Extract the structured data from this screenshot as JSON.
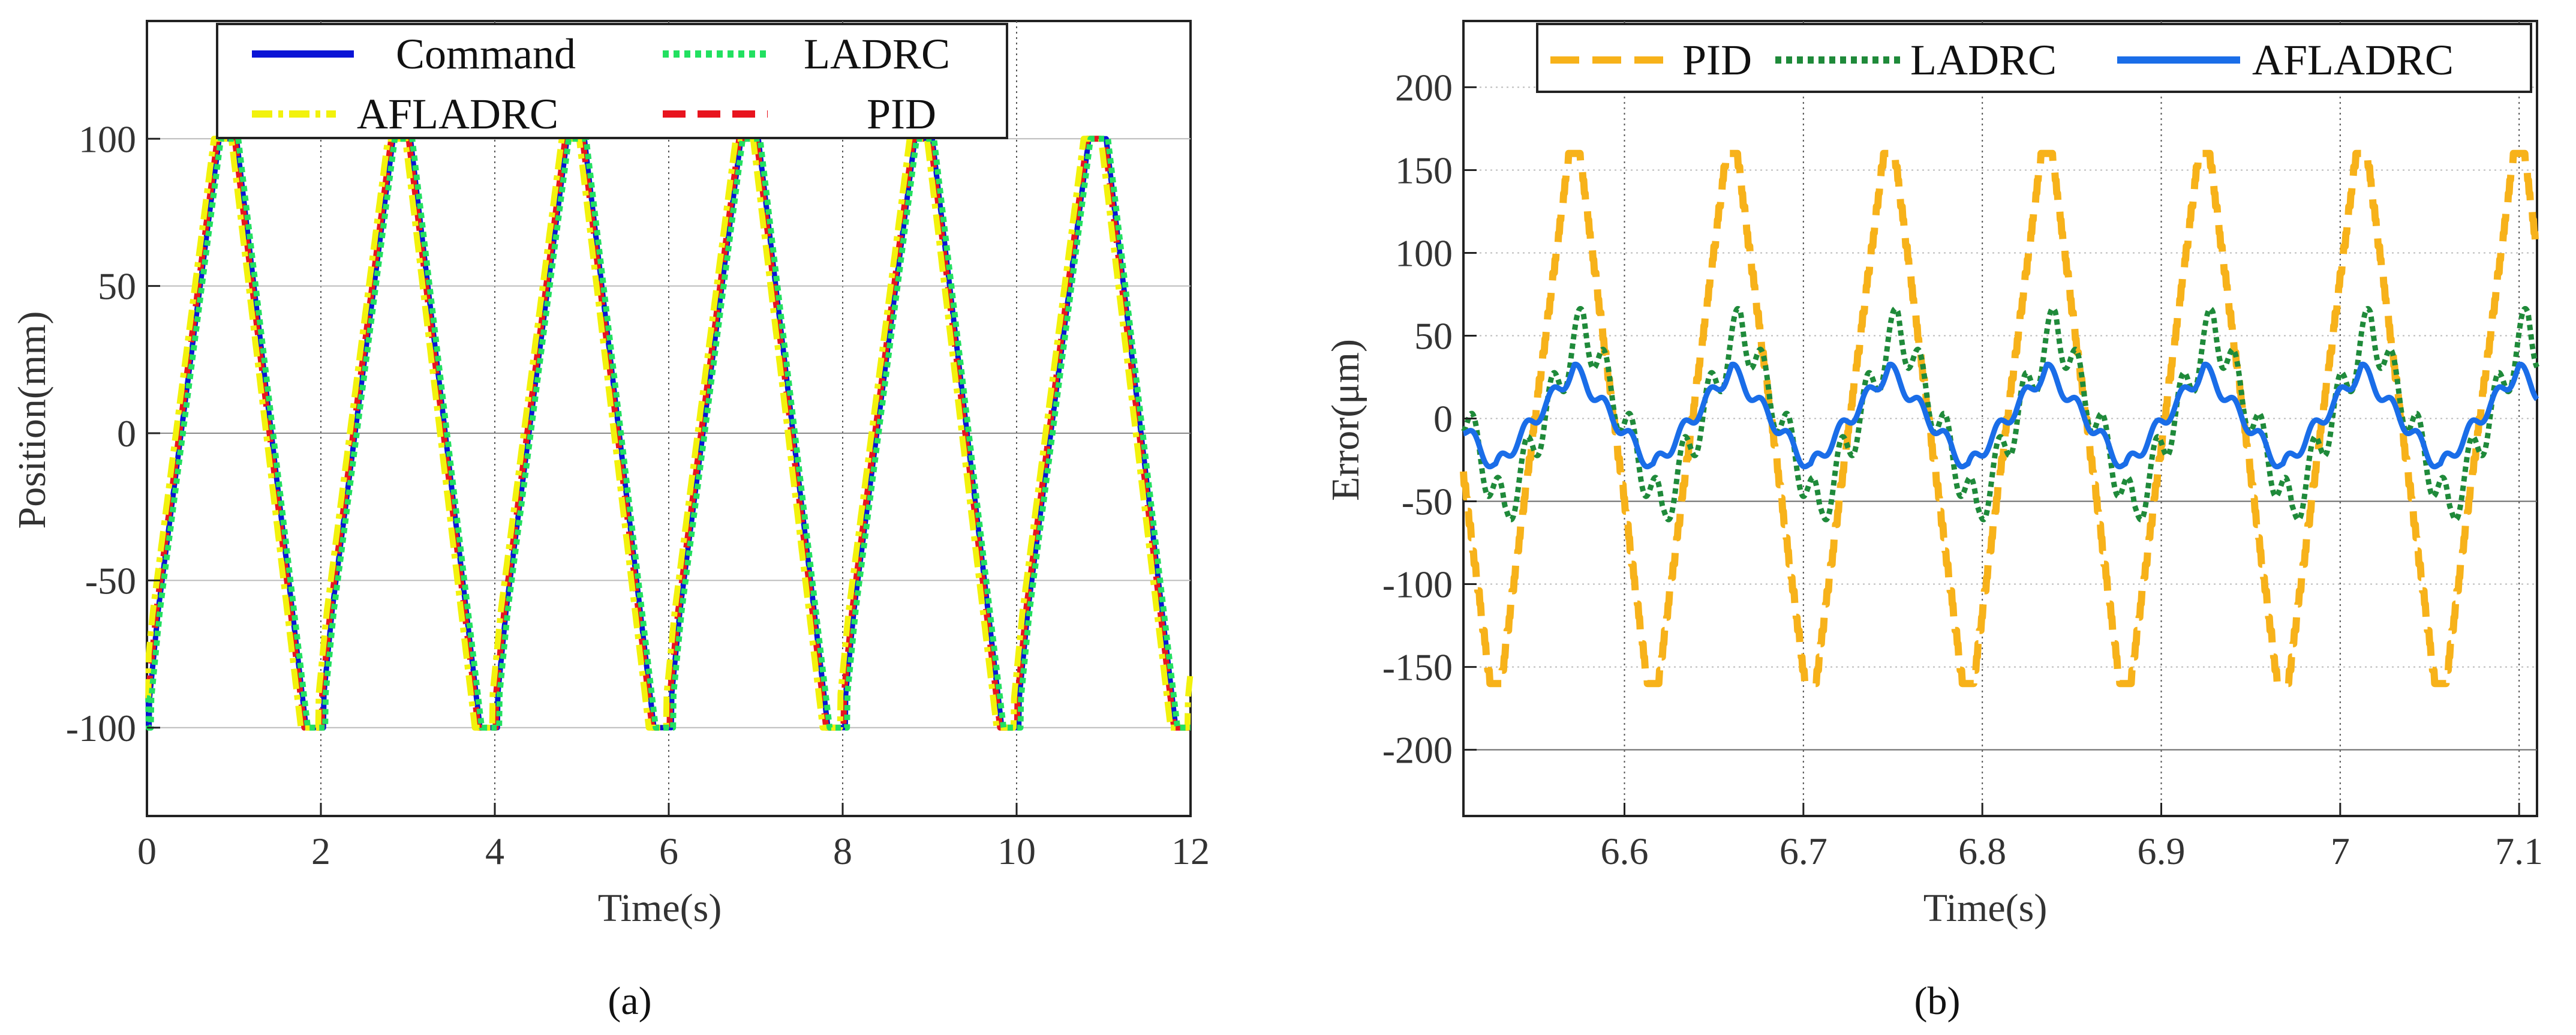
{
  "chart_data": [
    {
      "type": "line",
      "panel": "a",
      "caption": "(a)",
      "xlabel": "Time(s)",
      "ylabel": "Position(mm)",
      "xlim": [
        0,
        12
      ],
      "ylim": [
        -130,
        140
      ],
      "xticks": [
        0,
        2,
        4,
        6,
        8,
        10,
        12
      ],
      "xtick_labels": [
        "0",
        "2",
        "4",
        "6",
        "8",
        "10",
        "12"
      ],
      "yticks": [
        -100,
        -50,
        0,
        50,
        100
      ],
      "ytick_labels": [
        "-100",
        "-50",
        "0",
        "50",
        "100"
      ],
      "legend_position": "top-center",
      "period": 2,
      "series": [
        {
          "name": "Command",
          "color": "#0a14d6",
          "dash": "solid",
          "lag": 0.03,
          "x": [
            0,
            0.1,
            0.8,
            1.0,
            1.8,
            2.0,
            2.8,
            3.0,
            3.8,
            4.0,
            4.8,
            5.0,
            5.8,
            6.0,
            6.8,
            7.0,
            7.8,
            8.0,
            8.8,
            9.0,
            9.8,
            10.0,
            10.8,
            11.0,
            11.8,
            12.0
          ],
          "y": [
            -90,
            -60,
            100,
            100,
            -100,
            -100,
            100,
            100,
            -100,
            -100,
            100,
            100,
            -100,
            -100,
            100,
            100,
            -100,
            -100,
            100,
            100,
            -100,
            -100,
            100,
            100,
            -100,
            -100
          ]
        },
        {
          "name": "LADRC",
          "color": "#22e060",
          "dash": "dotted",
          "lag": 0.05
        },
        {
          "name": "AFLADRC",
          "color": "#f2f20c",
          "dash": "dashdot",
          "lag": -0.03
        },
        {
          "name": "PID",
          "color": "#e8141e",
          "dash": "dashed",
          "lag": 0.01
        }
      ]
    },
    {
      "type": "line",
      "panel": "b",
      "caption": "(b)",
      "xlabel": "Time(s)",
      "ylabel": "Error(μm)",
      "xlim": [
        6.51,
        7.11
      ],
      "ylim": [
        -240,
        240
      ],
      "xticks": [
        6.6,
        6.7,
        6.8,
        6.9,
        7.0,
        7.1
      ],
      "xtick_labels": [
        "6.6",
        "6.7",
        "6.8",
        "6.9",
        "7",
        "7.1"
      ],
      "yticks": [
        -200,
        -150,
        -100,
        -50,
        0,
        50,
        100,
        150,
        200
      ],
      "ytick_labels": [
        "-200",
        "-150",
        "-100",
        "-50",
        "0",
        "50",
        "100",
        "150",
        "200"
      ],
      "legend_position": "top",
      "period": 0.088,
      "series": [
        {
          "name": "PID",
          "color": "#f7b21a",
          "dash": "dashed",
          "amplitude": 157,
          "peak_time": 6.66,
          "ripple": 0
        },
        {
          "name": "LADRC",
          "color": "#1f8a3a",
          "dash": "dotted",
          "amplitude": 58,
          "peak_time": 6.665,
          "ripple": 14
        },
        {
          "name": "AFLADRC",
          "color": "#1a6de8",
          "dash": "solid",
          "amplitude": 30,
          "peak_time": 6.66,
          "ripple": 6
        }
      ]
    }
  ]
}
